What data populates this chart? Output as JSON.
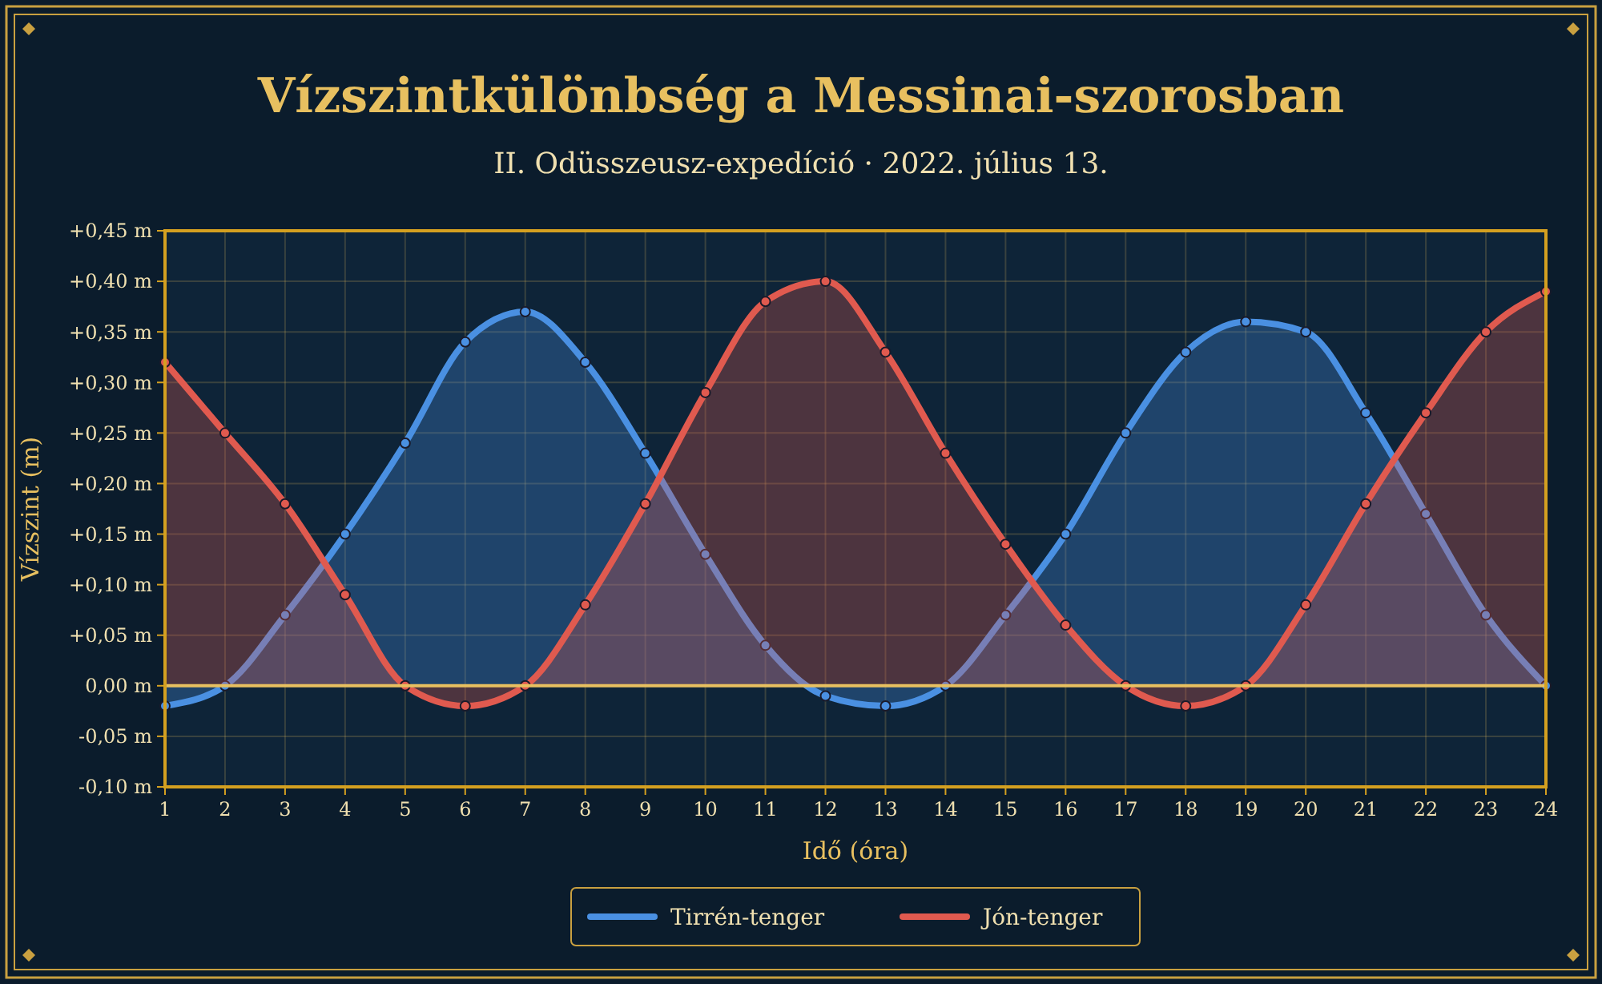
{
  "chart_data": {
    "type": "area",
    "title": "Vízszintkülönbség a Messinai-szorosban",
    "subtitle": "II. Odüsszeusz-expedíció · 2022. július 13.",
    "xlabel": "Idő (óra)",
    "ylabel": "Vízszint (m)",
    "x": [
      1,
      2,
      3,
      4,
      5,
      6,
      7,
      8,
      9,
      10,
      11,
      12,
      13,
      14,
      15,
      16,
      17,
      18,
      19,
      20,
      21,
      22,
      23,
      24
    ],
    "series": [
      {
        "name": "Tirrén-tenger",
        "color": "#4a90e2",
        "values": [
          -0.02,
          0,
          0.07,
          0.15,
          0.24,
          0.34,
          0.37,
          0.32,
          0.23,
          0.13,
          0.04,
          -0.01,
          -0.02,
          0,
          0.07,
          0.15,
          0.25,
          0.33,
          0.36,
          0.35,
          0.27,
          0.17,
          0.07,
          0
        ]
      },
      {
        "name": "Jón-tenger",
        "color": "#e05a4f",
        "values": [
          0.32,
          0.25,
          0.18,
          0.09,
          0,
          -0.02,
          0,
          0.08,
          0.18,
          0.29,
          0.38,
          0.4,
          0.33,
          0.23,
          0.14,
          0.06,
          0,
          -0.02,
          0,
          0.08,
          0.18,
          0.27,
          0.35,
          0.39
        ]
      }
    ],
    "xlim": [
      1,
      24
    ],
    "xticks": [
      1,
      2,
      3,
      4,
      5,
      6,
      7,
      8,
      9,
      10,
      11,
      12,
      13,
      14,
      15,
      16,
      17,
      18,
      19,
      20,
      21,
      22,
      23,
      24
    ],
    "ylim": [
      -0.1,
      0.45
    ],
    "yticks": [
      {
        "value": -0.1,
        "label": "-0,10 m"
      },
      {
        "value": -0.05,
        "label": "-0,05 m"
      },
      {
        "value": 0,
        "label": "0,00 m"
      },
      {
        "value": 0.05,
        "label": "+0,05 m"
      },
      {
        "value": 0.1,
        "label": "+0,10 m"
      },
      {
        "value": 0.15,
        "label": "+0,15 m"
      },
      {
        "value": 0.2,
        "label": "+0,20 m"
      },
      {
        "value": 0.25,
        "label": "+0,25 m"
      },
      {
        "value": 0.3,
        "label": "+0,30 m"
      },
      {
        "value": 0.35,
        "label": "+0,35 m"
      },
      {
        "value": 0.4,
        "label": "+0,40 m"
      },
      {
        "value": 0.45,
        "label": "+0,45 m"
      }
    ],
    "ref_lines": [
      {
        "axis": "y",
        "value": 0,
        "color": "#e8c060"
      }
    ],
    "grid": true,
    "legend": "bottom",
    "marker": "circle",
    "line_style": "solid"
  }
}
